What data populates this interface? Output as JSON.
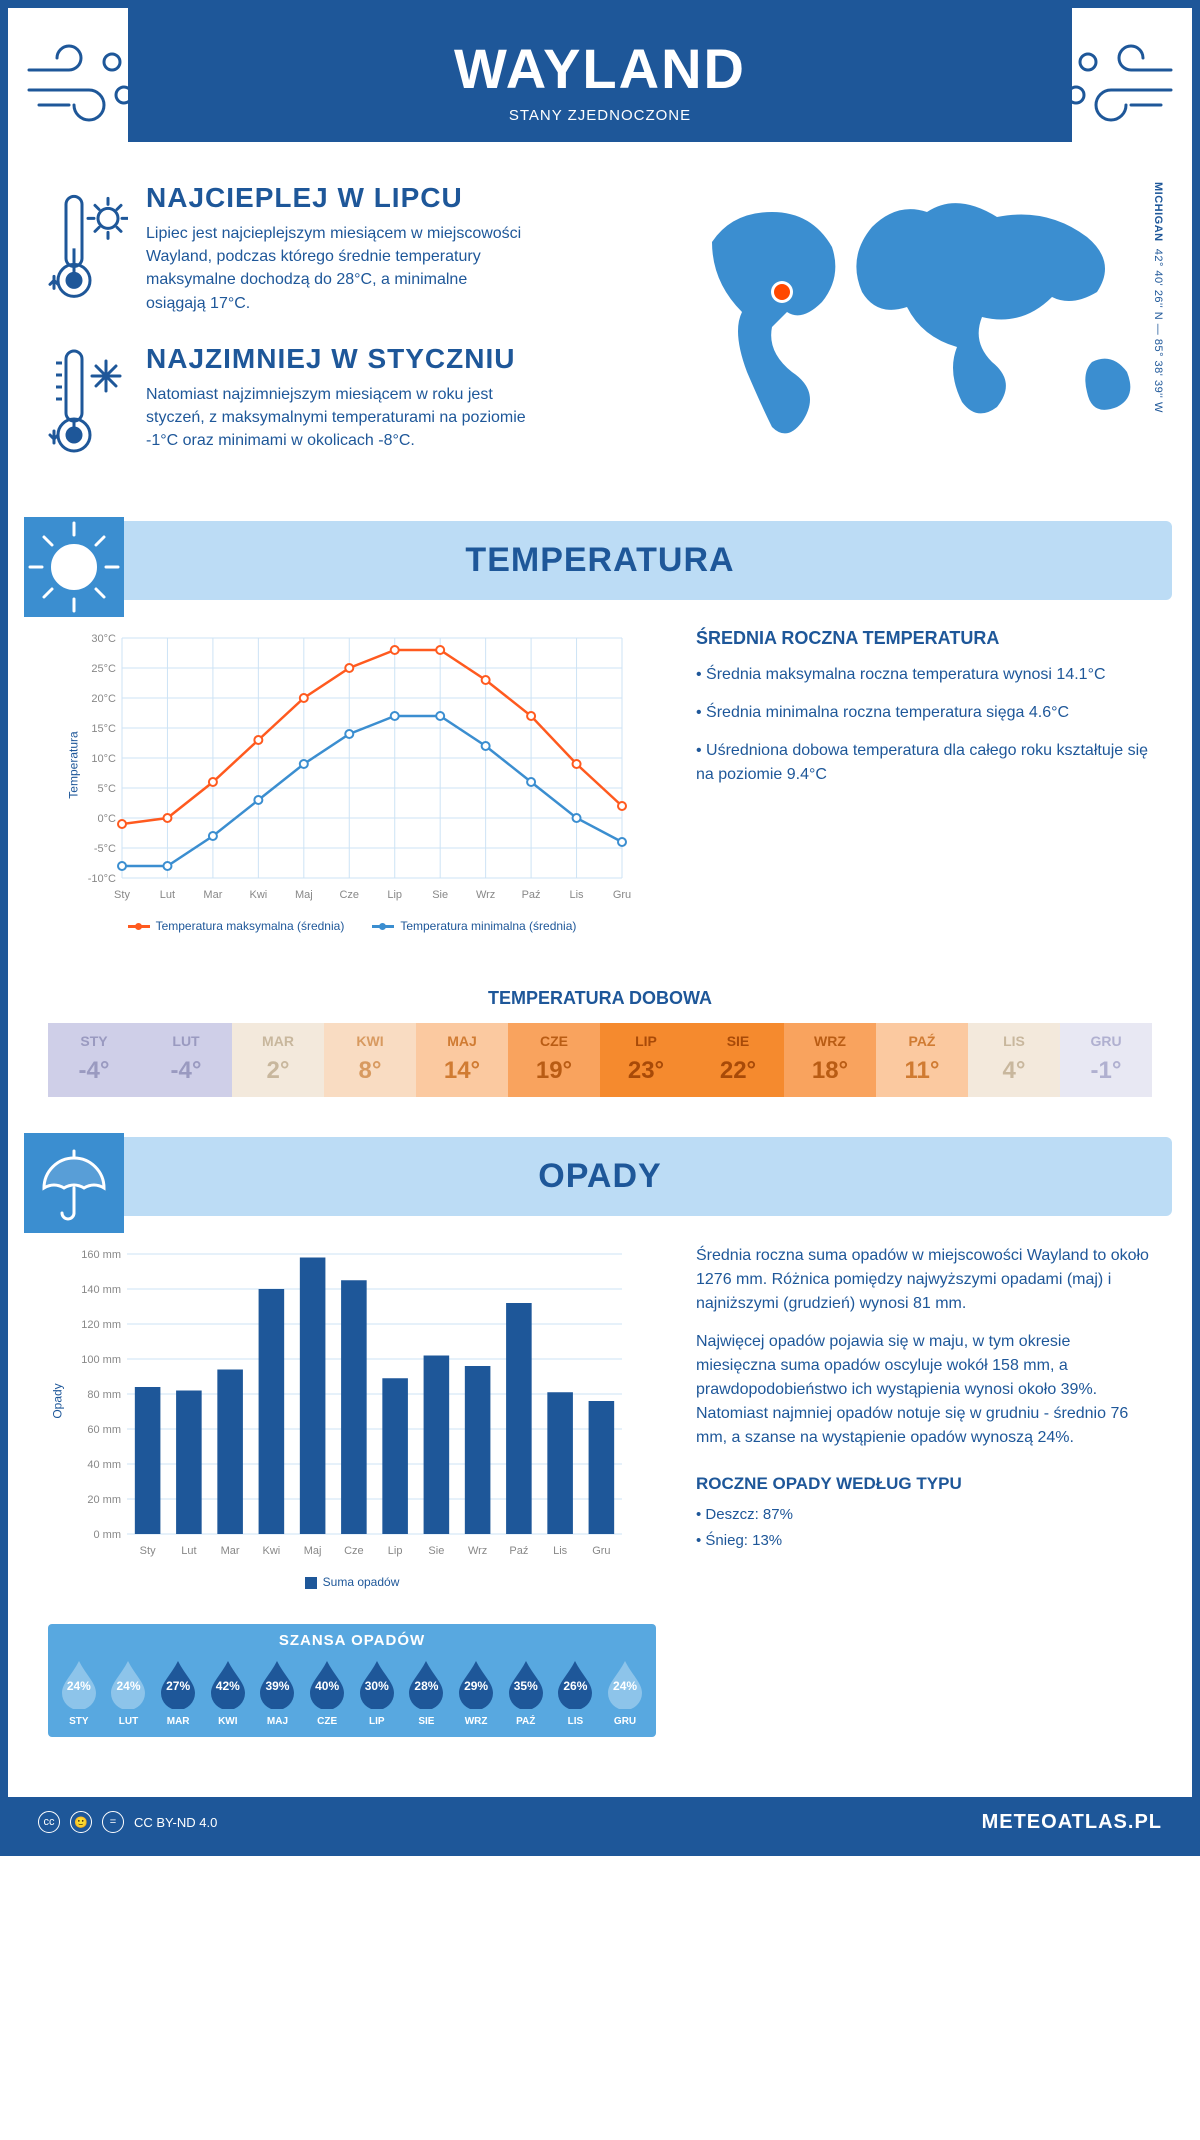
{
  "header": {
    "title": "WAYLAND",
    "subtitle": "STANY ZJEDNOCZONE"
  },
  "location": {
    "coords": "42° 40' 26'' N — 85° 38' 39'' W",
    "state": "MICHIGAN",
    "marker_color": "#ff4800",
    "map_color": "#3b8ed0"
  },
  "intro": {
    "hot": {
      "title": "NAJCIEPLEJ W LIPCU",
      "text": "Lipiec jest najcieplejszym miesiącem w miejscowości Wayland, podczas którego średnie temperatury maksymalne dochodzą do 28°C, a minimalne osiągają 17°C."
    },
    "cold": {
      "title": "NAJZIMNIEJ W STYCZNIU",
      "text": "Natomiast najzimniejszym miesiącem w roku jest styczeń, z maksymalnymi temperaturami na poziomie -1°C oraz minimami w okolicach -8°C."
    }
  },
  "temperature": {
    "section_title": "TEMPERATURA",
    "months": [
      "Sty",
      "Lut",
      "Mar",
      "Kwi",
      "Maj",
      "Cze",
      "Lip",
      "Sie",
      "Wrz",
      "Paź",
      "Lis",
      "Gru"
    ],
    "max_series": [
      -1,
      0,
      6,
      13,
      20,
      25,
      28,
      28,
      23,
      17,
      9,
      2
    ],
    "min_series": [
      -8,
      -8,
      -3,
      3,
      9,
      14,
      17,
      17,
      12,
      6,
      0,
      -4
    ],
    "ylim": [
      -10,
      30
    ],
    "ytick_step": 5,
    "max_color": "#ff5a1f",
    "min_color": "#3b8ed0",
    "grid_color": "#cde3f5",
    "y_title": "Temperatura",
    "legend_max": "Temperatura maksymalna (średnia)",
    "legend_min": "Temperatura minimalna (średnia)",
    "side": {
      "title": "ŚREDNIA ROCZNA TEMPERATURA",
      "bullets": [
        "• Średnia maksymalna roczna temperatura wynosi 14.1°C",
        "• Średnia minimalna roczna temperatura sięga 4.6°C",
        "• Uśredniona dobowa temperatura dla całego roku kształtuje się na poziomie 9.4°C"
      ]
    }
  },
  "daily": {
    "title": "TEMPERATURA DOBOWA",
    "months": [
      "STY",
      "LUT",
      "MAR",
      "KWI",
      "MAJ",
      "CZE",
      "LIP",
      "SIE",
      "WRZ",
      "PAŹ",
      "LIS",
      "GRU"
    ],
    "values": [
      "-4°",
      "-4°",
      "2°",
      "8°",
      "14°",
      "19°",
      "23°",
      "22°",
      "18°",
      "11°",
      "4°",
      "-1°"
    ],
    "bg_colors": [
      "#cfcfe8",
      "#cfcfe8",
      "#f3e9dc",
      "#f9dcc2",
      "#fbc9a0",
      "#f9a35e",
      "#f58a2e",
      "#f58a2e",
      "#f9a35e",
      "#fbc9a0",
      "#f3e9dc",
      "#e8e8f3"
    ],
    "text_colors": [
      "#9a9ac0",
      "#9a9ac0",
      "#c8b79d",
      "#d89a60",
      "#d07b32",
      "#b95c14",
      "#a84a08",
      "#a84a08",
      "#b95c14",
      "#d07b32",
      "#c8b79d",
      "#b0b0d0"
    ]
  },
  "rain": {
    "section_title": "OPADY",
    "months": [
      "Sty",
      "Lut",
      "Mar",
      "Kwi",
      "Maj",
      "Cze",
      "Lip",
      "Sie",
      "Wrz",
      "Paź",
      "Lis",
      "Gru"
    ],
    "values": [
      84,
      82,
      94,
      140,
      158,
      145,
      89,
      102,
      96,
      132,
      81,
      76
    ],
    "ylim": [
      0,
      160
    ],
    "ytick_step": 20,
    "bar_color": "#1e5799",
    "grid_color": "#cde3f5",
    "y_title": "Opady",
    "legend": "Suma opadów",
    "para1": "Średnia roczna suma opadów w miejscowości Wayland to około 1276 mm. Różnica pomiędzy najwyższymi opadami (maj) i najniższymi (grudzień) wynosi 81 mm.",
    "para2": "Najwięcej opadów pojawia się w maju, w tym okresie miesięczna suma opadów oscyluje wokół 158 mm, a prawdopodobieństwo ich wystąpienia wynosi około 39%. Natomiast najmniej opadów notuje się w grudniu - średnio 76 mm, a szanse na wystąpienie opadów wynoszą 24%.",
    "chance": {
      "title": "SZANSA OPADÓW",
      "months": [
        "STY",
        "LUT",
        "MAR",
        "KWI",
        "MAJ",
        "CZE",
        "LIP",
        "SIE",
        "WRZ",
        "PAŹ",
        "LIS",
        "GRU"
      ],
      "pct": [
        "24%",
        "24%",
        "27%",
        "42%",
        "39%",
        "40%",
        "30%",
        "28%",
        "29%",
        "35%",
        "26%",
        "24%"
      ],
      "colors": [
        "#8dc4ea",
        "#8dc4ea",
        "#1e5799",
        "#1e5799",
        "#1e5799",
        "#1e5799",
        "#1e5799",
        "#1e5799",
        "#1e5799",
        "#1e5799",
        "#1e5799",
        "#8dc4ea"
      ]
    },
    "type": {
      "title": "ROCZNE OPADY WEDŁUG TYPU",
      "rain": "• Deszcz: 87%",
      "snow": "• Śnieg: 13%"
    }
  },
  "footer": {
    "license": "CC BY-ND 4.0",
    "site": "METEOATLAS.PL"
  }
}
